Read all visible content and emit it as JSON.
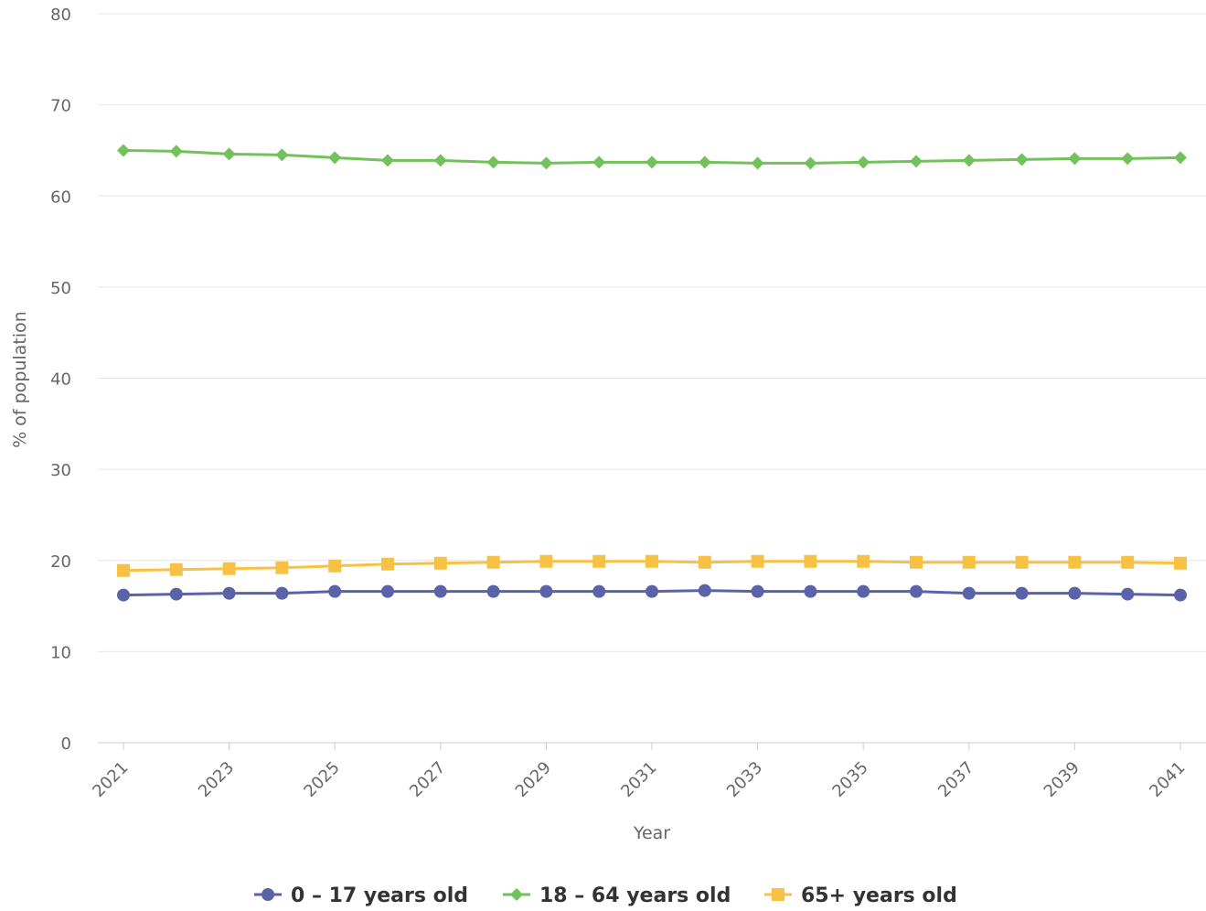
{
  "chart_data": {
    "type": "line",
    "xlabel": "Year",
    "ylabel": "% of population",
    "ylim": [
      0,
      80
    ],
    "yticks": [
      0,
      10,
      20,
      30,
      40,
      50,
      60,
      70,
      80
    ],
    "x": [
      "2021",
      "2022",
      "2023",
      "2024",
      "2025",
      "2026",
      "2027",
      "2028",
      "2029",
      "2030",
      "2031",
      "2032",
      "2033",
      "2034",
      "2035",
      "2036",
      "2037",
      "2038",
      "2039",
      "2040",
      "2041"
    ],
    "xtick_labels": [
      "2021",
      "2023",
      "2025",
      "2027",
      "2029",
      "2031",
      "2033",
      "2035",
      "2037",
      "2039",
      "2041"
    ],
    "grid": true,
    "legend_position": "bottom",
    "series": [
      {
        "name": "0 – 17 years old",
        "color": "#5b63a8",
        "marker": "circle",
        "values": [
          16.2,
          16.3,
          16.4,
          16.4,
          16.6,
          16.6,
          16.6,
          16.6,
          16.6,
          16.6,
          16.6,
          16.7,
          16.6,
          16.6,
          16.6,
          16.6,
          16.4,
          16.4,
          16.4,
          16.3,
          16.2
        ]
      },
      {
        "name": "18 – 64 years old",
        "color": "#72c15a",
        "marker": "diamond",
        "values": [
          65.0,
          64.9,
          64.6,
          64.5,
          64.2,
          63.9,
          63.9,
          63.7,
          63.6,
          63.7,
          63.7,
          63.7,
          63.6,
          63.6,
          63.7,
          63.8,
          63.9,
          64.0,
          64.1,
          64.1,
          64.2
        ]
      },
      {
        "name": "65+ years old",
        "color": "#f7c244",
        "marker": "square",
        "values": [
          18.9,
          19.0,
          19.1,
          19.2,
          19.4,
          19.6,
          19.7,
          19.8,
          19.9,
          19.9,
          19.9,
          19.8,
          19.9,
          19.9,
          19.9,
          19.8,
          19.8,
          19.8,
          19.8,
          19.8,
          19.7
        ]
      }
    ]
  }
}
